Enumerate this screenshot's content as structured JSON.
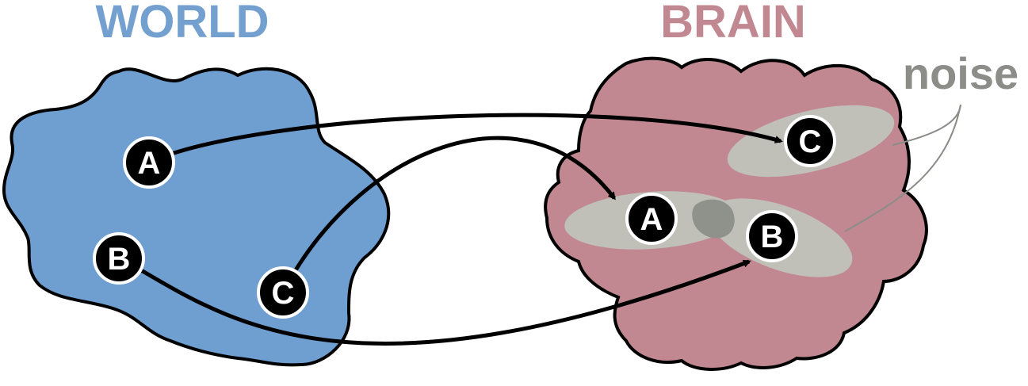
{
  "world": {
    "title": "WORLD",
    "color": "#6f9fd0",
    "title_color": "#74a0d0",
    "nodes": [
      "A",
      "B",
      "C"
    ]
  },
  "brain": {
    "title": "BRAIN",
    "color": "#c18891",
    "title_color": "#c18891",
    "nodes": [
      "A",
      "B",
      "C"
    ],
    "noise_label": "noise",
    "noise_color": "#8c8c88",
    "noise_region_color": "#c0c0b9",
    "overlap_color": "#8e928b"
  },
  "node_style": {
    "fill": "#000000",
    "stroke": "#ffffff",
    "text": "#ffffff"
  },
  "arrows": [
    {
      "from": "world.A",
      "to": "brain.C"
    },
    {
      "from": "world.C",
      "to": "brain.A"
    },
    {
      "from": "world.B",
      "to": "brain.B"
    }
  ]
}
